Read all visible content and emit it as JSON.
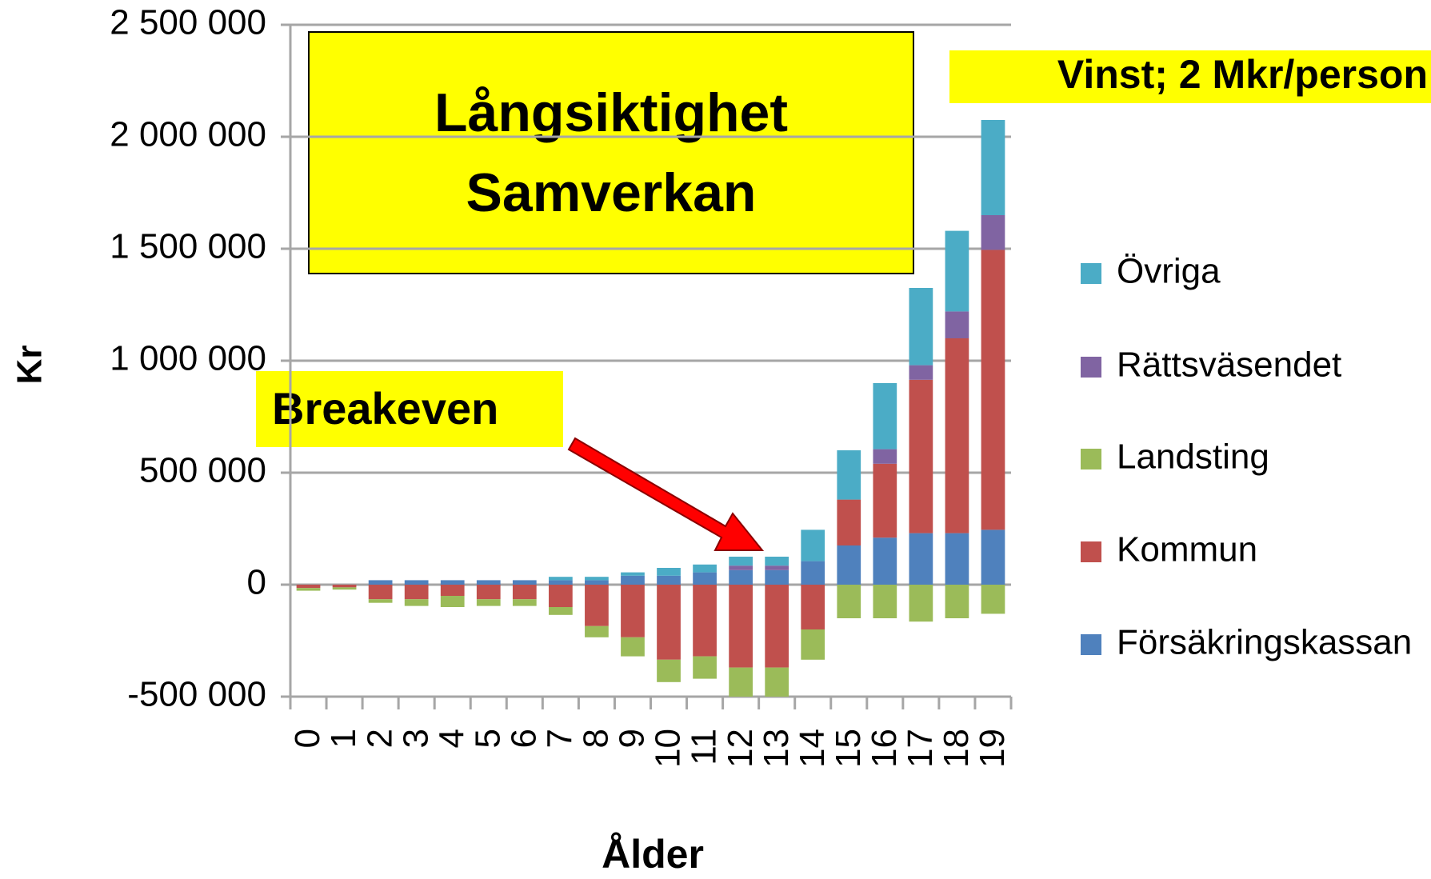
{
  "chart_data": {
    "type": "stacked_bar",
    "x_label": "Ålder",
    "y_label": "Kr",
    "categories": [
      "0",
      "1",
      "2",
      "3",
      "4",
      "5",
      "6",
      "7",
      "8",
      "9",
      "10",
      "11",
      "12",
      "13",
      "14",
      "15",
      "16",
      "17",
      "18",
      "19"
    ],
    "series": [
      {
        "name": "Försäkringskassan",
        "color": "#4f81bd",
        "values": [
          0,
          0,
          20000,
          20000,
          20000,
          20000,
          20000,
          20000,
          20000,
          40000,
          40000,
          55000,
          65000,
          65000,
          105000,
          175000,
          210000,
          230000,
          230000,
          245000
        ]
      },
      {
        "name": "Kommun",
        "color": "#c0504d",
        "values": [
          -15000,
          -12000,
          -65000,
          -65000,
          -50000,
          -65000,
          -65000,
          -100000,
          -185000,
          -235000,
          -335000,
          -320000,
          -370000,
          -370000,
          -200000,
          205000,
          330000,
          685000,
          870000,
          1250000
        ]
      },
      {
        "name": "Landsting",
        "color": "#9bbb59",
        "values": [
          -12000,
          -10000,
          -16000,
          -30000,
          -50000,
          -30000,
          -30000,
          -35000,
          -50000,
          -85000,
          -100000,
          -100000,
          -130000,
          -130000,
          -135000,
          -150000,
          -150000,
          -165000,
          -150000,
          -130000
        ]
      },
      {
        "name": "Rättsväsendet",
        "color": "#8064a2",
        "values": [
          0,
          0,
          0,
          0,
          0,
          0,
          0,
          0,
          0,
          0,
          0,
          0,
          20000,
          20000,
          0,
          0,
          65000,
          65000,
          120000,
          155000
        ]
      },
      {
        "name": "Övriga",
        "color": "#4bacc6",
        "values": [
          0,
          0,
          0,
          0,
          0,
          0,
          0,
          15000,
          15000,
          15000,
          35000,
          35000,
          40000,
          40000,
          140000,
          220000,
          295000,
          345000,
          360000,
          425000
        ]
      }
    ],
    "ylim": [
      -500000,
      2500000
    ],
    "yticks": [
      {
        "value": -500000,
        "label": "-500 000"
      },
      0,
      {
        "value": 500000,
        "label": "500 000"
      },
      {
        "value": 1000000,
        "label": "1 000 000"
      },
      {
        "value": 1500000,
        "label": "1 500 000"
      },
      {
        "value": 2000000,
        "label": "2 000 000"
      },
      {
        "value": 2500000,
        "label": "2 500 000"
      }
    ],
    "grid": true,
    "legend": "right",
    "annotations": [
      {
        "lines": [
          "Långsiktighet",
          "Samverkan"
        ]
      },
      {
        "text": "Vinst; 2 Mkr/person"
      },
      {
        "text": "Breakeven"
      }
    ]
  }
}
